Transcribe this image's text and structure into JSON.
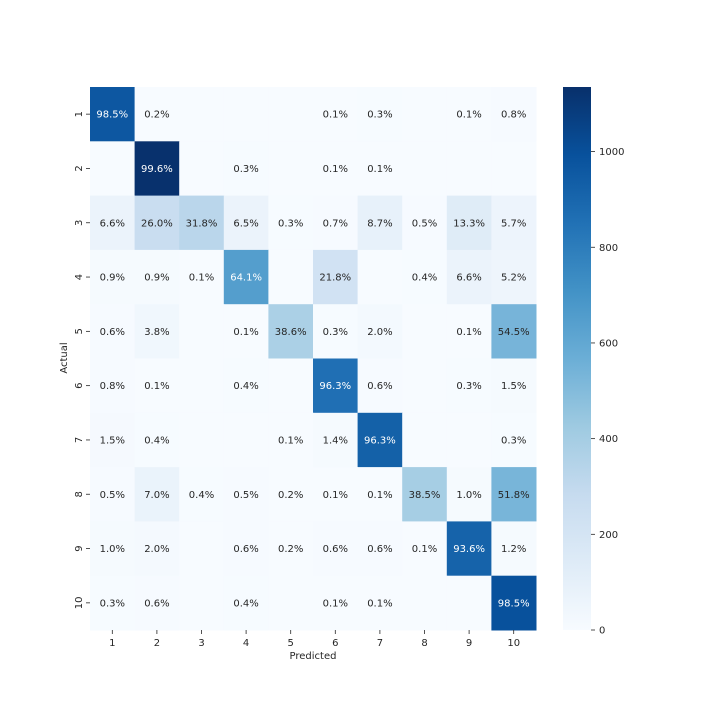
{
  "chart_data": {
    "type": "heatmap",
    "title": "",
    "xlabel": "Predicted",
    "ylabel": "Actual",
    "x_categories": [
      "1",
      "2",
      "3",
      "4",
      "5",
      "6",
      "7",
      "8",
      "9",
      "10"
    ],
    "y_categories": [
      "1",
      "2",
      "3",
      "4",
      "5",
      "6",
      "7",
      "8",
      "9",
      "10"
    ],
    "colormap": "Blues",
    "color_range": [
      0,
      1135
    ],
    "colorbar_ticks": [
      0,
      200,
      400,
      600,
      800,
      1000
    ],
    "cell_labels": [
      [
        "98.5%",
        "0.2%",
        "",
        "",
        "",
        "0.1%",
        "0.3%",
        "",
        "0.1%",
        "0.8%"
      ],
      [
        "",
        "99.6%",
        "",
        "0.3%",
        "",
        "0.1%",
        "0.1%",
        "",
        "",
        ""
      ],
      [
        "6.6%",
        "26.0%",
        "31.8%",
        "6.5%",
        "0.3%",
        "0.7%",
        "8.7%",
        "0.5%",
        "13.3%",
        "5.7%"
      ],
      [
        "0.9%",
        "0.9%",
        "0.1%",
        "64.1%",
        "",
        "21.8%",
        "",
        "0.4%",
        "6.6%",
        "5.2%"
      ],
      [
        "0.6%",
        "3.8%",
        "",
        "0.1%",
        "38.6%",
        "0.3%",
        "2.0%",
        "",
        "0.1%",
        "54.5%"
      ],
      [
        "0.8%",
        "0.1%",
        "",
        "0.4%",
        "",
        "96.3%",
        "0.6%",
        "",
        "0.3%",
        "1.5%"
      ],
      [
        "1.5%",
        "0.4%",
        "",
        "",
        "0.1%",
        "1.4%",
        "96.3%",
        "",
        "",
        "0.3%"
      ],
      [
        "0.5%",
        "7.0%",
        "0.4%",
        "0.5%",
        "0.2%",
        "0.1%",
        "0.1%",
        "38.5%",
        "1.0%",
        "51.8%"
      ],
      [
        "1.0%",
        "2.0%",
        "",
        "0.6%",
        "0.2%",
        "0.6%",
        "0.6%",
        "0.1%",
        "93.6%",
        "1.2%"
      ],
      [
        "0.3%",
        "0.6%",
        "",
        "0.4%",
        "",
        "0.1%",
        "0.1%",
        "",
        "",
        "98.5%"
      ]
    ],
    "values": [
      [
        965,
        2,
        0,
        0,
        0,
        1,
        3,
        0,
        1,
        8
      ],
      [
        0,
        1130,
        0,
        3,
        0,
        1,
        1,
        0,
        0,
        0
      ],
      [
        68,
        268,
        328,
        67,
        3,
        7,
        90,
        5,
        137,
        59
      ],
      [
        9,
        9,
        1,
        647,
        0,
        220,
        0,
        4,
        67,
        53
      ],
      [
        6,
        37,
        0,
        1,
        379,
        3,
        20,
        0,
        1,
        535
      ],
      [
        7,
        1,
        0,
        4,
        0,
        859,
        5,
        0,
        3,
        13
      ],
      [
        14,
        4,
        0,
        0,
        1,
        13,
        923,
        0,
        0,
        3
      ],
      [
        5,
        72,
        4,
        5,
        2,
        1,
        1,
        396,
        10,
        532
      ],
      [
        10,
        19,
        0,
        6,
        2,
        6,
        6,
        1,
        912,
        12
      ],
      [
        3,
        6,
        0,
        4,
        0,
        1,
        1,
        0,
        0,
        994
      ]
    ]
  }
}
